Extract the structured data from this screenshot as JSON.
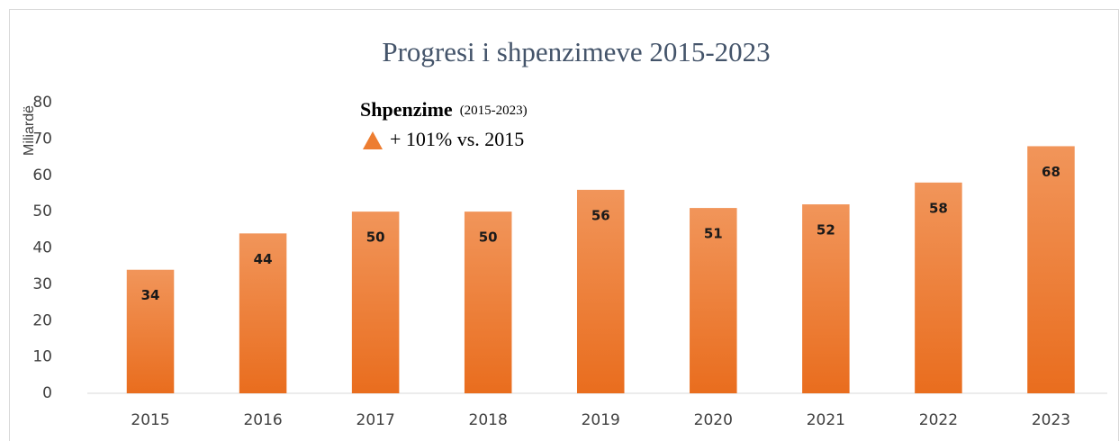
{
  "chart_data": {
    "type": "bar",
    "title": "Progresi i shpenzimeve 2015-2023",
    "y_label": "Miliardë",
    "annotation": {
      "title": "Shpenzime",
      "subtitle": "(2015-2023)",
      "text": "+ 101% vs. 2015"
    },
    "categories": [
      "2015",
      "2016",
      "2017",
      "2018",
      "2019",
      "2020",
      "2021",
      "2022",
      "2023"
    ],
    "values": [
      34,
      44,
      50,
      50,
      56,
      51,
      52,
      58,
      68
    ],
    "color": "#ed7d31",
    "ylim": [
      0,
      80
    ],
    "yticks": [
      0,
      10,
      20,
      30,
      40,
      50,
      60,
      70,
      80
    ],
    "grid": false
  }
}
